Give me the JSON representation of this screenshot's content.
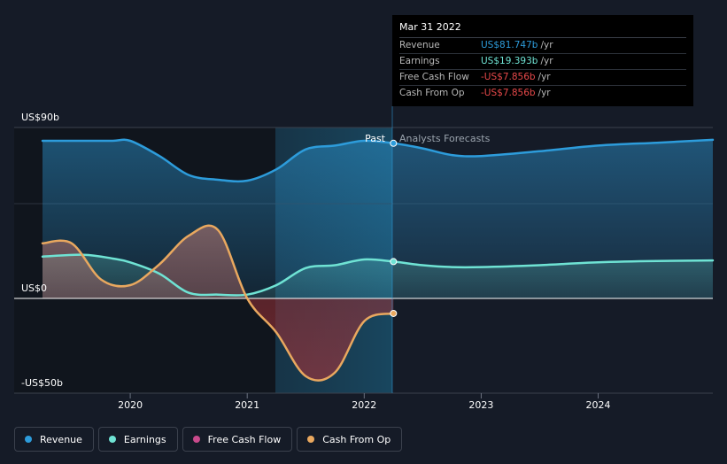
{
  "chart_data": {
    "type": "line",
    "title": "",
    "y_axis": {
      "labels": [
        "US$90b",
        "US$0",
        "-US$50b"
      ],
      "ylim": [
        -50,
        90
      ]
    },
    "x_axis": {
      "labels": [
        "2020",
        "2021",
        "2022",
        "2023",
        "2024"
      ],
      "xlim": [
        2019.25,
        2024.98
      ]
    },
    "regions": {
      "past_label": "Past",
      "forecast_label": "Analysts Forecasts",
      "divider_x": 2022.25,
      "highlight_start_x": 2021.25
    },
    "series": [
      {
        "name": "Revenue",
        "color": "#2d9cdb",
        "points": [
          [
            2019.25,
            83
          ],
          [
            2019.6,
            83
          ],
          [
            2019.85,
            83
          ],
          [
            2020.0,
            83
          ],
          [
            2020.25,
            75
          ],
          [
            2020.5,
            65
          ],
          [
            2020.75,
            62.5
          ],
          [
            2021.0,
            62
          ],
          [
            2021.25,
            68
          ],
          [
            2021.5,
            78.5
          ],
          [
            2021.75,
            80.5
          ],
          [
            2022.0,
            83
          ],
          [
            2022.25,
            81.7
          ],
          [
            2022.5,
            79
          ],
          [
            2022.75,
            75.5
          ],
          [
            2023.0,
            75
          ],
          [
            2023.5,
            77.5
          ],
          [
            2024.0,
            80.5
          ],
          [
            2024.5,
            82
          ],
          [
            2024.98,
            83.5
          ]
        ]
      },
      {
        "name": "Earnings",
        "color": "#6fe3d4",
        "points": [
          [
            2019.25,
            22
          ],
          [
            2019.6,
            23
          ],
          [
            2019.85,
            21
          ],
          [
            2020.0,
            19
          ],
          [
            2020.25,
            13
          ],
          [
            2020.5,
            3
          ],
          [
            2020.75,
            2
          ],
          [
            2021.0,
            2
          ],
          [
            2021.25,
            7
          ],
          [
            2021.5,
            16
          ],
          [
            2021.75,
            17.5
          ],
          [
            2022.0,
            20.5
          ],
          [
            2022.25,
            19.4
          ],
          [
            2022.5,
            17.5
          ],
          [
            2022.75,
            16.5
          ],
          [
            2023.0,
            16.5
          ],
          [
            2023.5,
            17.5
          ],
          [
            2024.0,
            19
          ],
          [
            2024.5,
            19.7
          ],
          [
            2024.98,
            20
          ]
        ]
      },
      {
        "name": "Cash From Op",
        "color": "#e9a85f",
        "points": [
          [
            2019.25,
            29
          ],
          [
            2019.5,
            29
          ],
          [
            2019.75,
            10
          ],
          [
            2020.0,
            7
          ],
          [
            2020.25,
            18
          ],
          [
            2020.5,
            33
          ],
          [
            2020.75,
            36
          ],
          [
            2021.0,
            0
          ],
          [
            2021.25,
            -18
          ],
          [
            2021.5,
            -41
          ],
          [
            2021.75,
            -39
          ],
          [
            2022.0,
            -12
          ],
          [
            2022.25,
            -7.9
          ]
        ]
      }
    ],
    "legend": [
      "Revenue",
      "Earnings",
      "Free Cash Flow",
      "Cash From Op"
    ]
  },
  "tooltip": {
    "date": "Mar 31 2022",
    "rows": [
      {
        "label": "Revenue",
        "value": "US$81.747b",
        "unit": "/yr",
        "color": "#2d9cdb"
      },
      {
        "label": "Earnings",
        "value": "US$19.393b",
        "unit": "/yr",
        "color": "#6fe3d4"
      },
      {
        "label": "Free Cash Flow",
        "value": "-US$7.856b",
        "unit": "/yr",
        "color": "#e8494a"
      },
      {
        "label": "Cash From Op",
        "value": "-US$7.856b",
        "unit": "/yr",
        "color": "#e8494a"
      }
    ]
  },
  "legend_items": [
    {
      "label": "Revenue",
      "color": "#2d9cdb"
    },
    {
      "label": "Earnings",
      "color": "#6fe3d4"
    },
    {
      "label": "Free Cash Flow",
      "color": "#c94a8c"
    },
    {
      "label": "Cash From Op",
      "color": "#e9a85f"
    }
  ]
}
